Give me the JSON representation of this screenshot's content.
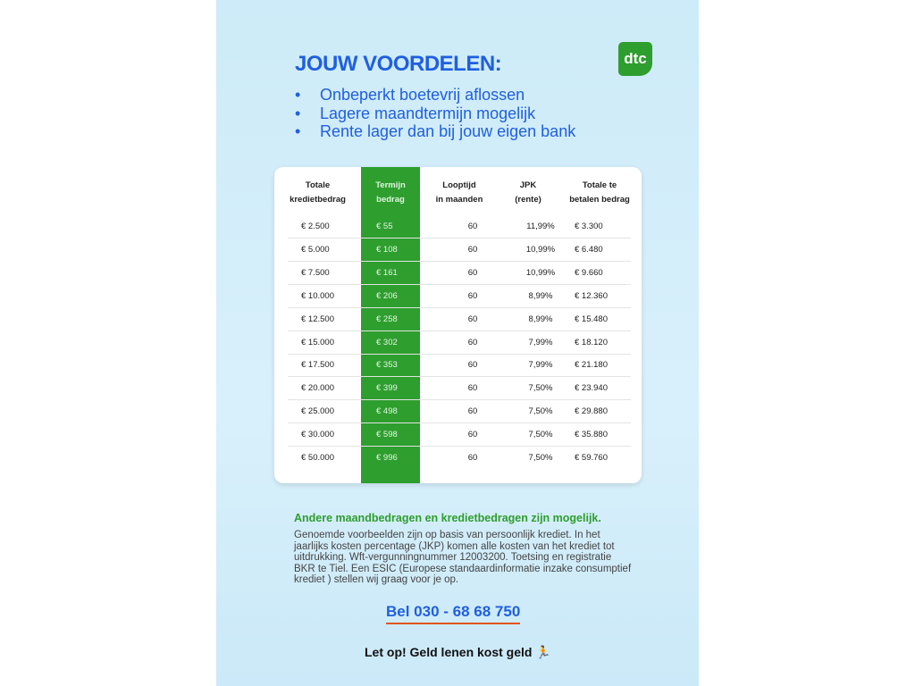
{
  "title": "JOUW VOORDELEN:",
  "logo": "dtc",
  "bullets": [
    "Onbeperkt boetevrij aflossen",
    "Lagere maandtermijn mogelijk",
    "Rente lager dan bij jouw eigen bank"
  ],
  "table": {
    "headers": [
      [
        "Totale",
        "kredietbedrag"
      ],
      [
        "Termijn",
        "bedrag"
      ],
      [
        "Looptijd",
        "in maanden"
      ],
      [
        "JPK",
        "(rente)"
      ],
      [
        "Totale te",
        "betalen bedrag"
      ]
    ],
    "rows": [
      [
        "€ 2.500",
        "€ 55",
        "60",
        "11,99%",
        "€ 3.300"
      ],
      [
        "€ 5.000",
        "€ 108",
        "60",
        "10,99%",
        "€ 6.480"
      ],
      [
        "€ 7.500",
        "€ 161",
        "60",
        "10,99%",
        "€ 9.660"
      ],
      [
        "€ 10.000",
        "€ 206",
        "60",
        "8,99%",
        "€ 12.360"
      ],
      [
        "€ 12.500",
        "€ 258",
        "60",
        "8,99%",
        "€ 15.480"
      ],
      [
        "€ 15.000",
        "€ 302",
        "60",
        "7,99%",
        "€ 18.120"
      ],
      [
        "€ 17.500",
        "€ 353",
        "60",
        "7,99%",
        "€ 21.180"
      ],
      [
        "€ 20.000",
        "€ 399",
        "60",
        "7,50%",
        "€ 23.940"
      ],
      [
        "€ 25.000",
        "€ 498",
        "60",
        "7,50%",
        "€ 29.880"
      ],
      [
        "€ 30.000",
        "€ 598",
        "60",
        "7,50%",
        "€ 35.880"
      ],
      [
        "€ 50.000",
        "€ 996",
        "60",
        "7,50%",
        "€ 59.760"
      ]
    ]
  },
  "note_heading": "Andere maandbedragen en kredietbedragen zijn mogelijk.",
  "note_text": "Genoemde voorbeelden zijn op basis van persoonlijk krediet. In het jaarlijks kosten percentage (JKP) komen alle kosten van het krediet tot uitdrukking. Wft-vergunningnummer 12003200. Toetsing en registratie BKR te Tiel. Een ESIC (Europese standaardinformatie inzake consumptief krediet ) stellen wij graag voor je op.",
  "phone": "Bel 030 - 68 68 750",
  "warning": "Let op! Geld lenen kost geld",
  "colors": {
    "blue": "#1f5fe0",
    "green": "#2e9e2e",
    "underline": "#e0551b"
  }
}
